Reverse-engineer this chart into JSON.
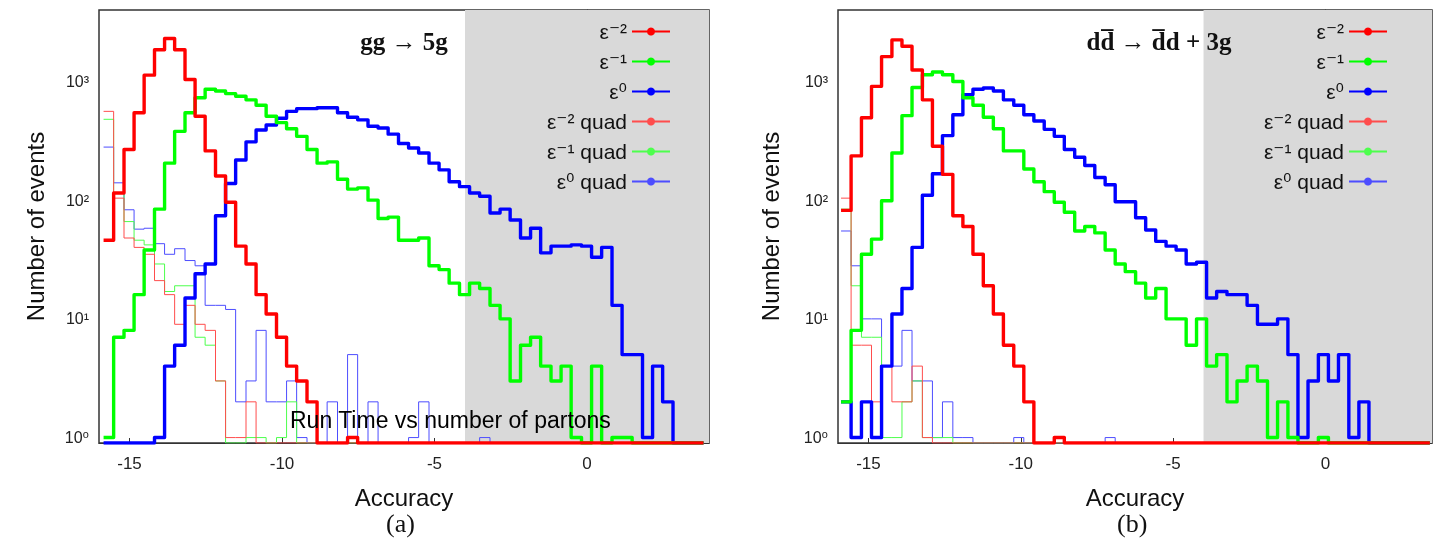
{
  "chart_data": [
    {
      "type": "histogram",
      "title": "gg → 5g",
      "xlabel": "Accuracy",
      "ylabel": "Number of events",
      "xlim": [
        -16,
        4
      ],
      "xticks": [
        -15,
        -10,
        -5,
        0
      ],
      "ylim": [
        0.9,
        4000
      ],
      "log": "y",
      "yticks": [
        {
          "value": 1,
          "label": "10⁰"
        },
        {
          "value": 10,
          "label": "10¹"
        },
        {
          "value": 100,
          "label": "10²"
        },
        {
          "value": 1000,
          "label": "10³"
        }
      ],
      "legend": "top right",
      "bands": [
        {
          "axis": "x",
          "from": -4,
          "to": 4,
          "color": "#d9d9d9"
        }
      ],
      "annotations": [
        "Run Time vs number of partons",
        "(a)"
      ],
      "bins": [
        -15.85,
        -15.52,
        -15.18,
        -14.85,
        -14.52,
        -14.18,
        -13.85,
        -13.52,
        -13.18,
        -12.85,
        -12.52,
        -12.18,
        -11.85,
        -11.52,
        -11.18,
        -10.85,
        -10.52,
        -10.18,
        -9.85,
        -9.52,
        -9.18,
        -8.85,
        -8.52,
        -8.18,
        -7.85,
        -7.52,
        -7.18,
        -6.85,
        -6.52,
        -6.18,
        -5.85,
        -5.52,
        -5.18,
        -4.85,
        -4.52,
        -4.18,
        -3.85,
        -3.52,
        -3.18,
        -2.85,
        -2.52,
        -2.18,
        -1.85,
        -1.52,
        -1.18,
        -0.85,
        -0.52,
        -0.18,
        0.15,
        0.48,
        0.82,
        1.15,
        1.48,
        1.82,
        2.15,
        2.48,
        2.82,
        3.15,
        3.48,
        3.82
      ],
      "series": [
        {
          "name": "ε⁻²",
          "color": "#ff0000",
          "values": [
            46,
            115,
            267,
            545,
            1130,
            1850,
            2300,
            1850,
            1040,
            510,
            260,
            160,
            96,
            41,
            29,
            16,
            11,
            7,
            4,
            3,
            2,
            null,
            null,
            null,
            1,
            null,
            null,
            null,
            null,
            null,
            null,
            null,
            null,
            null,
            null,
            null,
            null,
            null,
            null,
            null,
            null,
            null,
            null,
            null,
            null,
            null,
            null,
            null,
            null,
            null,
            null,
            null,
            null,
            null,
            null,
            null,
            null,
            null,
            null
          ]
        },
        {
          "name": "ε⁻¹",
          "color": "#00ff00",
          "values": [
            1,
            7,
            8,
            16,
            38,
            84,
            205,
            380,
            545,
            730,
            860,
            830,
            790,
            750,
            700,
            630,
            510,
            450,
            400,
            345,
            267,
            205,
            210,
            150,
            124,
            127,
            100,
            70,
            72,
            46,
            46,
            48,
            28,
            26,
            20,
            16,
            20,
            18,
            13,
            10,
            3,
            6,
            7,
            4,
            3,
            4,
            1,
            null,
            4,
            null,
            1,
            1,
            null,
            null,
            null,
            null,
            null,
            null,
            null
          ]
        },
        {
          "name": "ε⁰",
          "color": "#0000ff",
          "values": [
            null,
            null,
            null,
            null,
            null,
            1,
            4,
            6,
            15,
            24,
            29,
            74,
            138,
            218,
            310,
            390,
            430,
            490,
            560,
            590,
            590,
            600,
            600,
            545,
            500,
            475,
            420,
            405,
            360,
            300,
            275,
            250,
            205,
            180,
            143,
            130,
            115,
            108,
            78,
            84,
            68,
            48,
            58,
            36,
            41,
            41,
            42,
            41,
            33,
            40,
            13,
            5,
            5,
            1,
            4,
            2,
            null,
            null,
            null
          ]
        },
        {
          "name": "ε⁻² quad",
          "color": "#ff4d4d",
          "values": [
            560,
            104,
            48,
            40,
            35,
            21,
            16,
            9,
            13,
            9,
            8,
            3,
            1,
            1,
            2,
            null,
            null,
            null,
            null,
            null,
            null,
            null,
            null,
            null,
            null,
            null,
            null,
            null,
            null,
            null,
            null,
            null,
            null,
            null,
            null,
            null,
            null,
            null,
            null,
            null,
            null,
            null,
            null,
            null,
            null,
            null,
            null,
            null,
            null,
            null,
            null,
            null,
            null,
            null,
            null,
            null,
            null,
            null,
            null
          ]
        },
        {
          "name": "ε⁻¹ quad",
          "color": "#4dff4d",
          "values": [
            480,
            115,
            66,
            46,
            42,
            29,
            17,
            19,
            19,
            7,
            6,
            3,
            null,
            null,
            1,
            1,
            null,
            1,
            2,
            null,
            null,
            null,
            null,
            null,
            null,
            null,
            null,
            null,
            null,
            null,
            null,
            null,
            null,
            null,
            null,
            null,
            null,
            null,
            null,
            null,
            null,
            null,
            null,
            null,
            null,
            null,
            null,
            null,
            null,
            null,
            null,
            null,
            null,
            null,
            null,
            null,
            null,
            null,
            null
          ]
        },
        {
          "name": "ε⁰ quad",
          "color": "#4d4dff",
          "values": [
            280,
            140,
            83,
            57,
            58,
            43,
            35,
            39,
            31,
            28,
            13,
            13,
            12,
            2,
            3,
            8,
            2,
            2,
            3,
            1,
            null,
            null,
            2,
            null,
            5,
            null,
            2,
            null,
            null,
            null,
            1,
            2,
            null,
            null,
            null,
            null,
            null,
            1,
            null,
            null,
            null,
            null,
            null,
            null,
            null,
            null,
            null,
            null,
            null,
            null,
            null,
            null,
            null,
            null,
            null,
            null,
            null,
            null,
            null
          ]
        }
      ]
    },
    {
      "type": "histogram",
      "title": "dd̅ → d̅d + 3g",
      "xlabel": "Accuracy",
      "ylabel": "Number of events",
      "xlim": [
        -16,
        3.5
      ],
      "xticks": [
        -15,
        -10,
        -5,
        0
      ],
      "ylim": [
        0.9,
        4000
      ],
      "log": "y",
      "yticks": [
        {
          "value": 1,
          "label": "10⁰"
        },
        {
          "value": 10,
          "label": "10¹"
        },
        {
          "value": 100,
          "label": "10²"
        },
        {
          "value": 1000,
          "label": "10³"
        }
      ],
      "legend": "top right",
      "bands": [
        {
          "axis": "x",
          "from": -4,
          "to": 3.5,
          "color": "#d9d9d9"
        }
      ],
      "annotations": [
        "(b)"
      ],
      "bins": [
        -15.9,
        -15.57,
        -15.23,
        -14.9,
        -14.57,
        -14.23,
        -13.9,
        -13.57,
        -13.23,
        -12.9,
        -12.57,
        -12.23,
        -11.9,
        -11.57,
        -11.23,
        -10.9,
        -10.57,
        -10.23,
        -9.9,
        -9.57,
        -9.23,
        -8.9,
        -8.57,
        -8.23,
        -7.9,
        -7.57,
        -7.23,
        -6.9,
        -6.57,
        -6.23,
        -5.9,
        -5.57,
        -5.23,
        -4.9,
        -4.57,
        -4.23,
        -3.9,
        -3.57,
        -3.23,
        -2.9,
        -2.57,
        -2.23,
        -1.9,
        -1.57,
        -1.23,
        -0.9,
        -0.57,
        -0.23,
        0.1,
        0.43,
        0.77,
        1.1,
        1.43,
        1.77,
        2.1,
        2.43,
        2.77,
        3.1,
        3.43
      ],
      "series": [
        {
          "name": "ε⁻²",
          "color": "#ff0000",
          "values": [
            82,
            236,
            495,
            910,
            1620,
            2240,
            1980,
            1250,
            700,
            285,
            165,
            74,
            60,
            35,
            19,
            11,
            6,
            4,
            2,
            null,
            null,
            1,
            null,
            null,
            null,
            null,
            null,
            null,
            null,
            null,
            null,
            null,
            null,
            null,
            null,
            null,
            null,
            null,
            null,
            null,
            null,
            null,
            null,
            null,
            null,
            null,
            null,
            null,
            null,
            null,
            null,
            null,
            null,
            null,
            null,
            null,
            null,
            null
          ]
        },
        {
          "name": "ε⁻¹",
          "color": "#00ff00",
          "values": [
            2,
            8,
            35,
            47,
            99,
            250,
            515,
            890,
            1140,
            1200,
            1140,
            1000,
            730,
            630,
            500,
            400,
            260,
            260,
            183,
            143,
            118,
            96,
            79,
            55,
            60,
            53,
            38,
            29,
            25,
            20,
            15,
            18,
            10,
            10,
            6,
            10,
            4,
            5,
            2,
            3,
            4,
            3,
            1,
            2,
            1,
            null,
            null,
            1,
            null,
            null,
            null,
            null,
            null,
            null,
            null,
            null,
            null,
            null
          ]
        },
        {
          "name": "ε⁰",
          "color": "#0000ff",
          "values": [
            2,
            1,
            2,
            1,
            4,
            11,
            18,
            40,
            110,
            167,
            350,
            525,
            775,
            860,
            880,
            830,
            700,
            630,
            525,
            465,
            395,
            345,
            267,
            230,
            196,
            155,
            135,
            97,
            97,
            71,
            56,
            45,
            41,
            38,
            29,
            30,
            15,
            17,
            16,
            16,
            13,
            9,
            9,
            10,
            5,
            1,
            3,
            5,
            3,
            5,
            1,
            2,
            null,
            null,
            null,
            null,
            null,
            null
          ]
        },
        {
          "name": "ε⁻² quad",
          "color": "#ff4d4d",
          "values": [
            104,
            6,
            6,
            2,
            4,
            2,
            2,
            4,
            1,
            null,
            null,
            null,
            null,
            null,
            null,
            null,
            null,
            null,
            null,
            null,
            null,
            null,
            null,
            null,
            null,
            null,
            null,
            null,
            null,
            null,
            null,
            null,
            null,
            null,
            null,
            null,
            null,
            null,
            null,
            null,
            null,
            null,
            null,
            null,
            null,
            null,
            null,
            null,
            null,
            null,
            null,
            null,
            null,
            null,
            null,
            null,
            null,
            null
          ]
        },
        {
          "name": "ε⁻¹ quad",
          "color": "#4dff4d",
          "values": [
            84,
            19,
            7,
            7,
            1,
            1,
            2,
            3,
            1,
            1,
            1,
            null,
            null,
            null,
            null,
            null,
            null,
            null,
            null,
            null,
            null,
            null,
            null,
            null,
            null,
            null,
            null,
            null,
            null,
            null,
            null,
            null,
            null,
            null,
            null,
            null,
            null,
            null,
            null,
            null,
            null,
            null,
            null,
            null,
            null,
            null,
            null,
            null,
            null,
            null,
            null,
            null,
            null,
            null,
            null,
            null,
            null,
            null
          ]
        },
        {
          "name": "ε⁰ quad",
          "color": "#4d4dff",
          "values": [
            55,
            28,
            10,
            10,
            4,
            4,
            8,
            3,
            3,
            1,
            2,
            1,
            1,
            null,
            null,
            null,
            null,
            1,
            null,
            null,
            null,
            null,
            null,
            null,
            null,
            null,
            1,
            null,
            null,
            null,
            null,
            null,
            null,
            null,
            null,
            null,
            null,
            null,
            null,
            null,
            null,
            null,
            null,
            null,
            null,
            null,
            null,
            null,
            null,
            null,
            null,
            null,
            null,
            null,
            null,
            null,
            null,
            null
          ]
        }
      ]
    }
  ]
}
